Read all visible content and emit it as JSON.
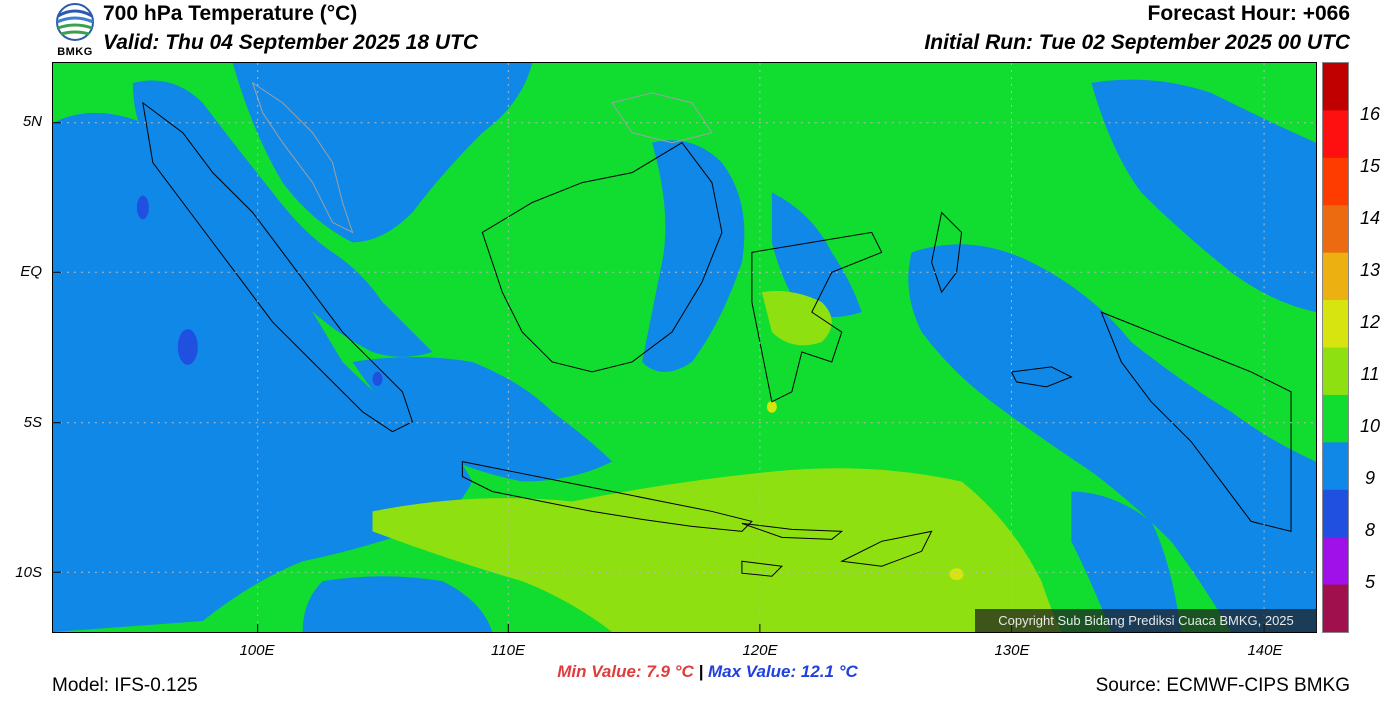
{
  "header": {
    "title": "700 hPa Temperature (°C)",
    "valid": "Valid: Thu 04 September 2025 18 UTC",
    "forecast_hour": "Forecast Hour: +066",
    "initial_run": "Initial Run: Tue 02 September 2025 00 UTC"
  },
  "logo": {
    "text": "BMKG"
  },
  "map": {
    "lat_labels": [
      "5N",
      "EQ",
      "5S",
      "10S"
    ],
    "lon_labels": [
      "100E",
      "110E",
      "120E",
      "130E",
      "140E"
    ],
    "copyright": "Copyright Sub Bidang Prediksi Cuaca BMKG, 2025"
  },
  "colorbar": {
    "labels": [
      "16",
      "15",
      "14",
      "13",
      "12",
      "11",
      "10",
      "9",
      "8",
      "5"
    ],
    "colors": [
      "#c00000",
      "#ff1010",
      "#ff3c00",
      "#ec6a10",
      "#ecb010",
      "#d8e410",
      "#8fe010",
      "#10dd30",
      "#1088e8",
      "#2050e0",
      "#a010e8",
      "#a0104c"
    ]
  },
  "footer": {
    "model": "Model: IFS-0.125",
    "min_value": "Min Value: 7.9 °C",
    "separator": "|",
    "max_value": "Max Value: 12.1 °C",
    "source": "Source: ECMWF-CIPS BMKG"
  },
  "fill_colors": {
    "green": "#10dd30",
    "blue": "#1088e8",
    "yellowgreen": "#8fe010",
    "darkblue": "#2050e0",
    "yellow": "#d8e410"
  }
}
